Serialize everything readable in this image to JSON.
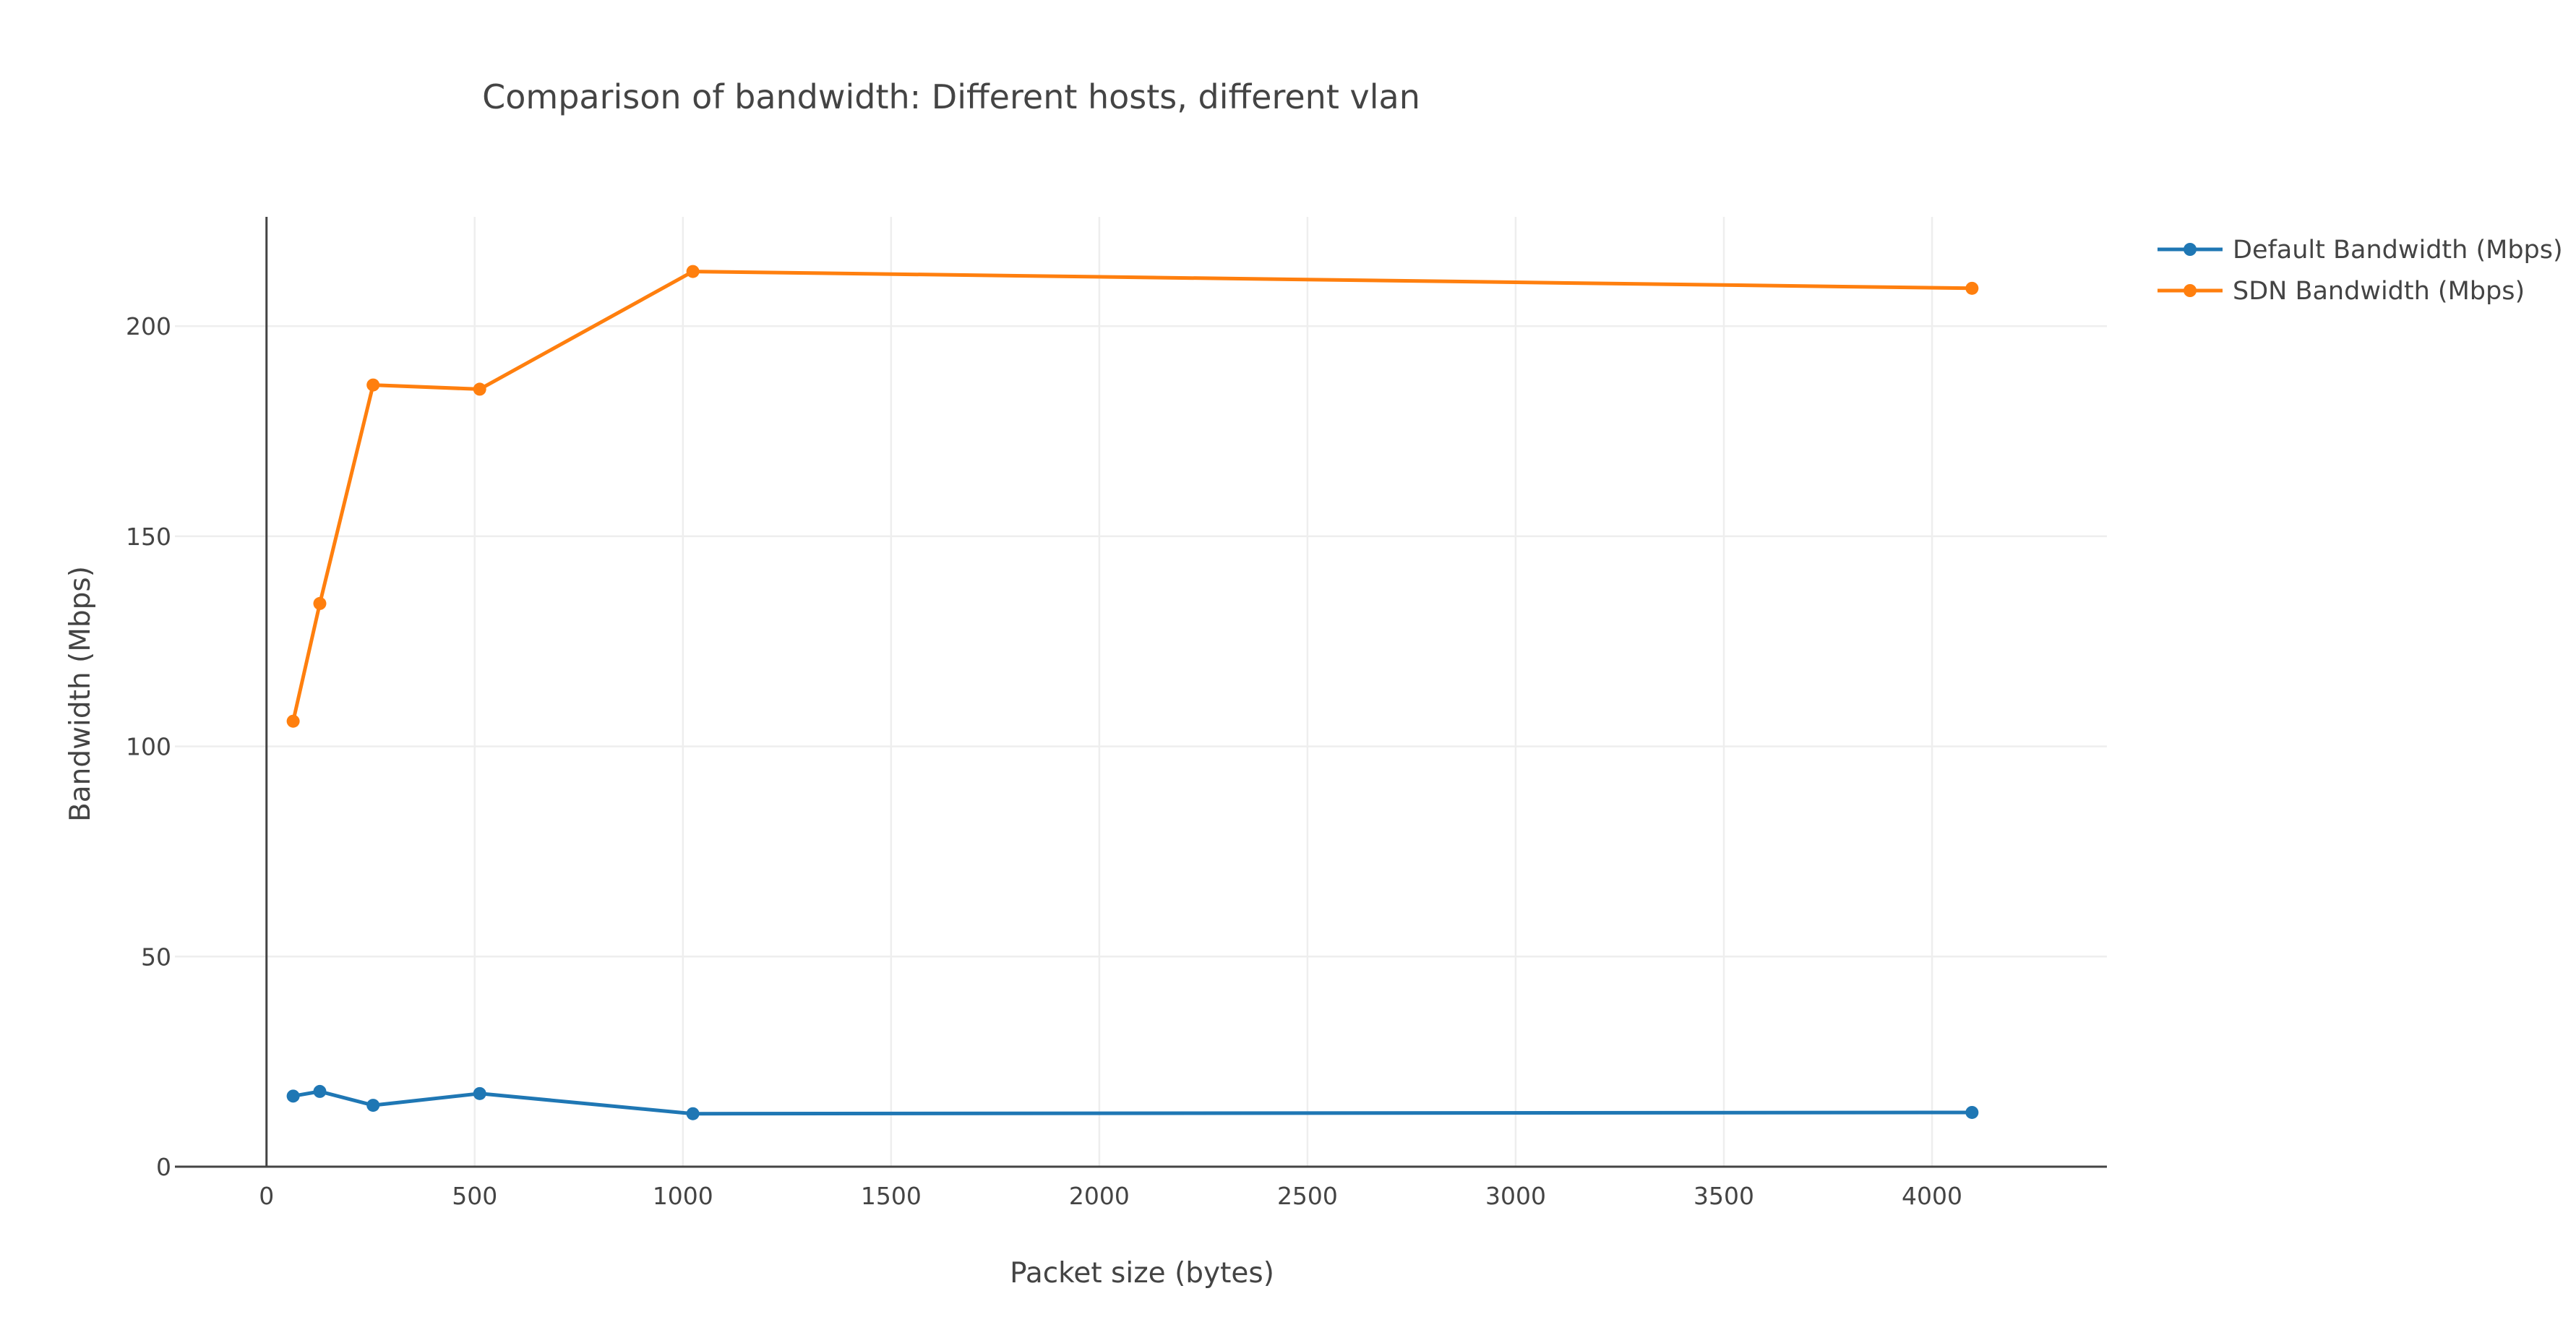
{
  "chart_data": {
    "type": "line",
    "title": "Comparison of bandwidth: Different hosts, different vlan",
    "xlabel": "Packet size (bytes)",
    "ylabel": "Bandwidth (Mbps)",
    "x": [
      64,
      128,
      256,
      512,
      1024,
      4096
    ],
    "xlim": [
      -220,
      4420
    ],
    "ylim": [
      0,
      226
    ],
    "xticks": [
      0,
      500,
      1000,
      1500,
      2000,
      2500,
      3000,
      3500,
      4000
    ],
    "yticks": [
      0,
      50,
      100,
      150,
      200
    ],
    "xtick_labels": [
      "0",
      "500",
      "1000",
      "1500",
      "2000",
      "2500",
      "3000",
      "3500",
      "4000"
    ],
    "ytick_labels": [
      "0",
      "50",
      "100",
      "150",
      "200"
    ],
    "grid": true,
    "legend_position": "top-right",
    "series": [
      {
        "name": "Default Bandwidth (Mbps)",
        "color": "#1f77b4",
        "values": [
          16.8,
          17.9,
          14.6,
          17.4,
          12.6,
          12.9
        ]
      },
      {
        "name": "SDN Bandwidth (Mbps)",
        "color": "#ff7f0e",
        "values": [
          106,
          134,
          186,
          185,
          213,
          209
        ]
      }
    ]
  }
}
